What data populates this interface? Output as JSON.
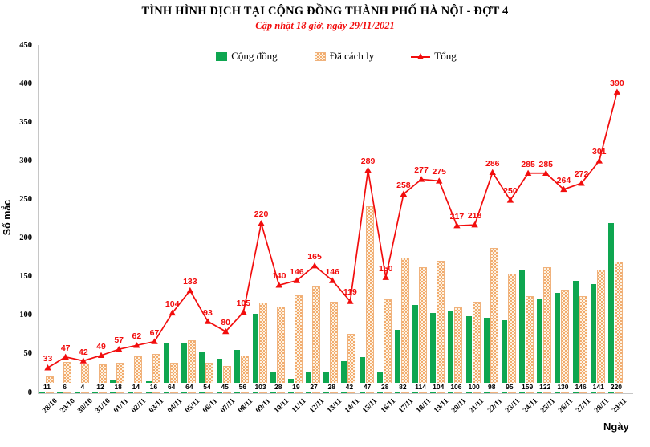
{
  "title": "TÌNH HÌNH DỊCH TẠI CỘNG ĐỒNG THÀNH PHỐ HÀ NỘI - ĐỢT 4",
  "subtitle": "Cập nhật 18 giờ, ngày 29/11/2021",
  "legend": {
    "items": [
      {
        "label": "Cộng đồng",
        "swatch": "green-square"
      },
      {
        "label": "Đã cách ly",
        "swatch": "orange-checker-square"
      },
      {
        "label": "Tổng",
        "swatch": "red-line-triangle"
      }
    ]
  },
  "colors": {
    "community_bar": "#0ea650",
    "quarantine_fill": "#fdf3e4",
    "quarantine_dot": "#f2ac6e",
    "total_line": "#f20d0d",
    "text": "#000000"
  },
  "chart_data": {
    "type": "bar",
    "subtype": "grouped bars + line overlay",
    "categories": [
      "28/10",
      "29/10",
      "30/10",
      "31/10",
      "01/11",
      "02/11",
      "03/11",
      "04/11",
      "05/11",
      "06/11",
      "07/11",
      "08/11",
      "09/11",
      "10/11",
      "11/11",
      "12/11",
      "13/11",
      "14/11",
      "15/11",
      "16/11",
      "17/11",
      "18/11",
      "19/11",
      "20/11",
      "21/11",
      "22/11",
      "23/11",
      "24/11",
      "25/11",
      "26/11",
      "27/11",
      "28/11",
      "29/11"
    ],
    "series": [
      {
        "name": "Cộng đồng",
        "type": "bar",
        "values": [
          11,
          6,
          4,
          12,
          18,
          14,
          16,
          64,
          64,
          54,
          45,
          56,
          103,
          28,
          19,
          27,
          28,
          42,
          47,
          28,
          82,
          114,
          104,
          106,
          100,
          98,
          95,
          159,
          122,
          130,
          146,
          141,
          220
        ],
        "labels_shown": true,
        "label_position": "inside-base"
      },
      {
        "name": "Đã cách ly",
        "type": "bar",
        "values": [
          22,
          41,
          38,
          37,
          39,
          48,
          51,
          40,
          69,
          39,
          35,
          49,
          117,
          112,
          127,
          138,
          118,
          77,
          242,
          122,
          176,
          163,
          171,
          111,
          118,
          188,
          155,
          126,
          163,
          134,
          126,
          160,
          170
        ],
        "labels_shown": false
      },
      {
        "name": "Tổng",
        "type": "line",
        "values": [
          33,
          47,
          42,
          49,
          57,
          62,
          67,
          104,
          133,
          93,
          80,
          105,
          220,
          140,
          146,
          165,
          146,
          119,
          289,
          150,
          258,
          277,
          275,
          217,
          218,
          286,
          250,
          285,
          285,
          264,
          272,
          301,
          390
        ],
        "labels_shown": true,
        "label_position": "above",
        "marker": "triangle"
      }
    ],
    "xlabel": "Ngày",
    "ylabel": "Số mắc",
    "ylim": [
      0,
      450
    ],
    "yticks": [
      0,
      50,
      100,
      150,
      200,
      250,
      300,
      350,
      400,
      450
    ],
    "grid": false,
    "legend_position": "top"
  }
}
